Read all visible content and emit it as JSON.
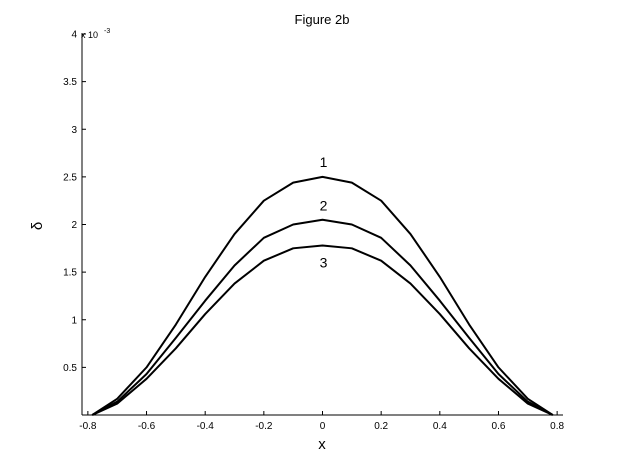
{
  "chart_data": {
    "type": "line",
    "title": "Figure 2b",
    "xlabel": "x",
    "ylabel": "δ",
    "y_multiplier": "x 10",
    "y_multiplier_exponent": "-3",
    "xlim": [
      -0.82,
      0.82
    ],
    "ylim": [
      0,
      0.004
    ],
    "xticks": [
      -0.8,
      -0.6,
      -0.4,
      -0.2,
      0,
      0.2,
      0.4,
      0.6,
      0.8
    ],
    "xtick_labels": [
      "-0.8",
      "-0.6",
      "-0.4",
      "-0.2",
      "0",
      "0.2",
      "0.4",
      "0.6",
      "0.8"
    ],
    "yticks": [
      0.0005,
      0.001,
      0.0015,
      0.002,
      0.0025,
      0.003,
      0.0035,
      0.004
    ],
    "ytick_labels": [
      "0.5",
      "1",
      "1.5",
      "2",
      "2.5",
      "3",
      "3.5",
      "4"
    ],
    "grid": false,
    "line_color": "#000000",
    "series": [
      {
        "name": "1",
        "x": [
          -0.785,
          -0.7,
          -0.6,
          -0.5,
          -0.4,
          -0.3,
          -0.2,
          -0.1,
          0,
          0.1,
          0.2,
          0.3,
          0.4,
          0.5,
          0.6,
          0.7,
          0.785
        ],
        "values": [
          0,
          0.00017,
          0.0005,
          0.00095,
          0.00145,
          0.0019,
          0.00225,
          0.00244,
          0.0025,
          0.00244,
          0.00225,
          0.0019,
          0.00145,
          0.00095,
          0.0005,
          0.00017,
          0
        ]
      },
      {
        "name": "2",
        "x": [
          -0.785,
          -0.7,
          -0.6,
          -0.5,
          -0.4,
          -0.3,
          -0.2,
          -0.1,
          0,
          0.1,
          0.2,
          0.3,
          0.4,
          0.5,
          0.6,
          0.7,
          0.785
        ],
        "values": [
          0,
          0.00014,
          0.00043,
          0.00081,
          0.0012,
          0.00157,
          0.00186,
          0.002,
          0.00205,
          0.002,
          0.00186,
          0.00157,
          0.0012,
          0.00081,
          0.00043,
          0.00014,
          0
        ]
      },
      {
        "name": "3",
        "x": [
          -0.785,
          -0.7,
          -0.6,
          -0.5,
          -0.4,
          -0.3,
          -0.2,
          -0.1,
          0,
          0.1,
          0.2,
          0.3,
          0.4,
          0.5,
          0.6,
          0.7,
          0.785
        ],
        "values": [
          0,
          0.00012,
          0.00038,
          0.0007,
          0.00106,
          0.00138,
          0.00162,
          0.00175,
          0.00178,
          0.00175,
          0.00162,
          0.00138,
          0.00106,
          0.0007,
          0.00038,
          0.00012,
          0
        ]
      }
    ]
  }
}
